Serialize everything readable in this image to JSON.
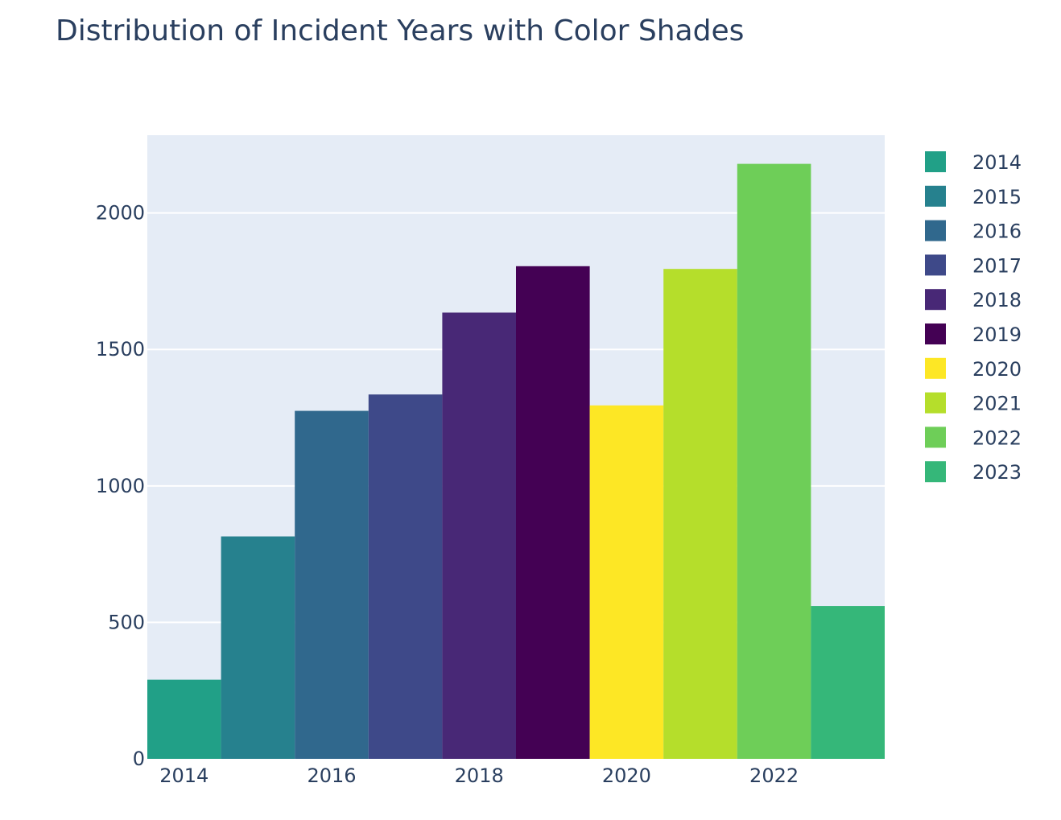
{
  "chart_data": {
    "type": "bar",
    "title": "Distribution of Incident Years with Color Shades",
    "xlabel": "",
    "ylabel": "",
    "categories": [
      "2014",
      "2015",
      "2016",
      "2017",
      "2018",
      "2019",
      "2020",
      "2021",
      "2022",
      "2023"
    ],
    "x": [
      2014,
      2015,
      2016,
      2017,
      2018,
      2019,
      2020,
      2021,
      2022,
      2023
    ],
    "values": [
      290,
      815,
      1275,
      1335,
      1635,
      1805,
      1295,
      1795,
      2180,
      560
    ],
    "colors": [
      "#21a087",
      "#26818e",
      "#30688d",
      "#3e4989",
      "#482876",
      "#440154",
      "#fde725",
      "#b5de2b",
      "#6ece58",
      "#35b779"
    ],
    "x_ticks": [
      2014,
      2016,
      2018,
      2020,
      2022
    ],
    "x_tick_labels": [
      "2014",
      "2016",
      "2018",
      "2020",
      "2022"
    ],
    "ylim": [
      0,
      2285
    ],
    "y_ticks": [
      0,
      500,
      1000,
      1500,
      2000
    ],
    "y_tick_labels": [
      "0",
      "500",
      "1000",
      "1500",
      "2000"
    ],
    "grid": true,
    "legend": {
      "placement": "right",
      "entries": [
        "2014",
        "2015",
        "2016",
        "2017",
        "2018",
        "2019",
        "2020",
        "2021",
        "2022",
        "2023"
      ]
    },
    "plot_background": "#e5ecf6"
  }
}
